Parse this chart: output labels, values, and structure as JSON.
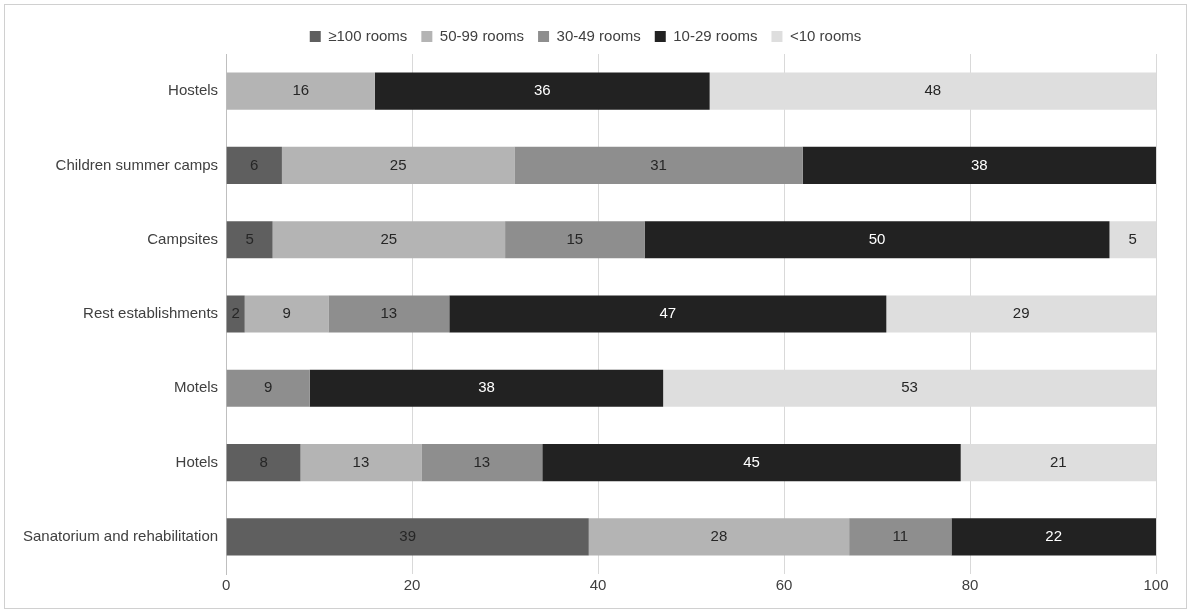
{
  "chart_data": {
    "type": "bar",
    "orientation": "horizontal",
    "stacked": true,
    "categories": [
      "Hostels",
      "Children summer camps",
      "Campsites",
      "Rest establishments",
      "Motels",
      "Hotels",
      "Sanatorium and rehabilitation"
    ],
    "series": [
      {
        "name": "≥100 rooms",
        "color": "#5f5f5f",
        "values": [
          null,
          6,
          5,
          2,
          null,
          8,
          39
        ]
      },
      {
        "name": "50-99 rooms",
        "color": "#b4b4b4",
        "values": [
          16,
          25,
          25,
          9,
          null,
          13,
          28
        ]
      },
      {
        "name": "30-49 rooms",
        "color": "#8e8e8e",
        "values": [
          null,
          31,
          15,
          13,
          9,
          13,
          11
        ]
      },
      {
        "name": "10-29 rooms",
        "color": "#222222",
        "values": [
          36,
          38,
          50,
          47,
          38,
          45,
          22
        ]
      },
      {
        "name": "<10 rooms",
        "color": "#dedede",
        "values": [
          48,
          null,
          5,
          29,
          53,
          21,
          null
        ]
      }
    ],
    "xlim": [
      0,
      100
    ],
    "xticks": [
      0,
      20,
      40,
      60,
      80,
      100
    ],
    "grid": "x",
    "legend": "top",
    "data_labels": true
  }
}
